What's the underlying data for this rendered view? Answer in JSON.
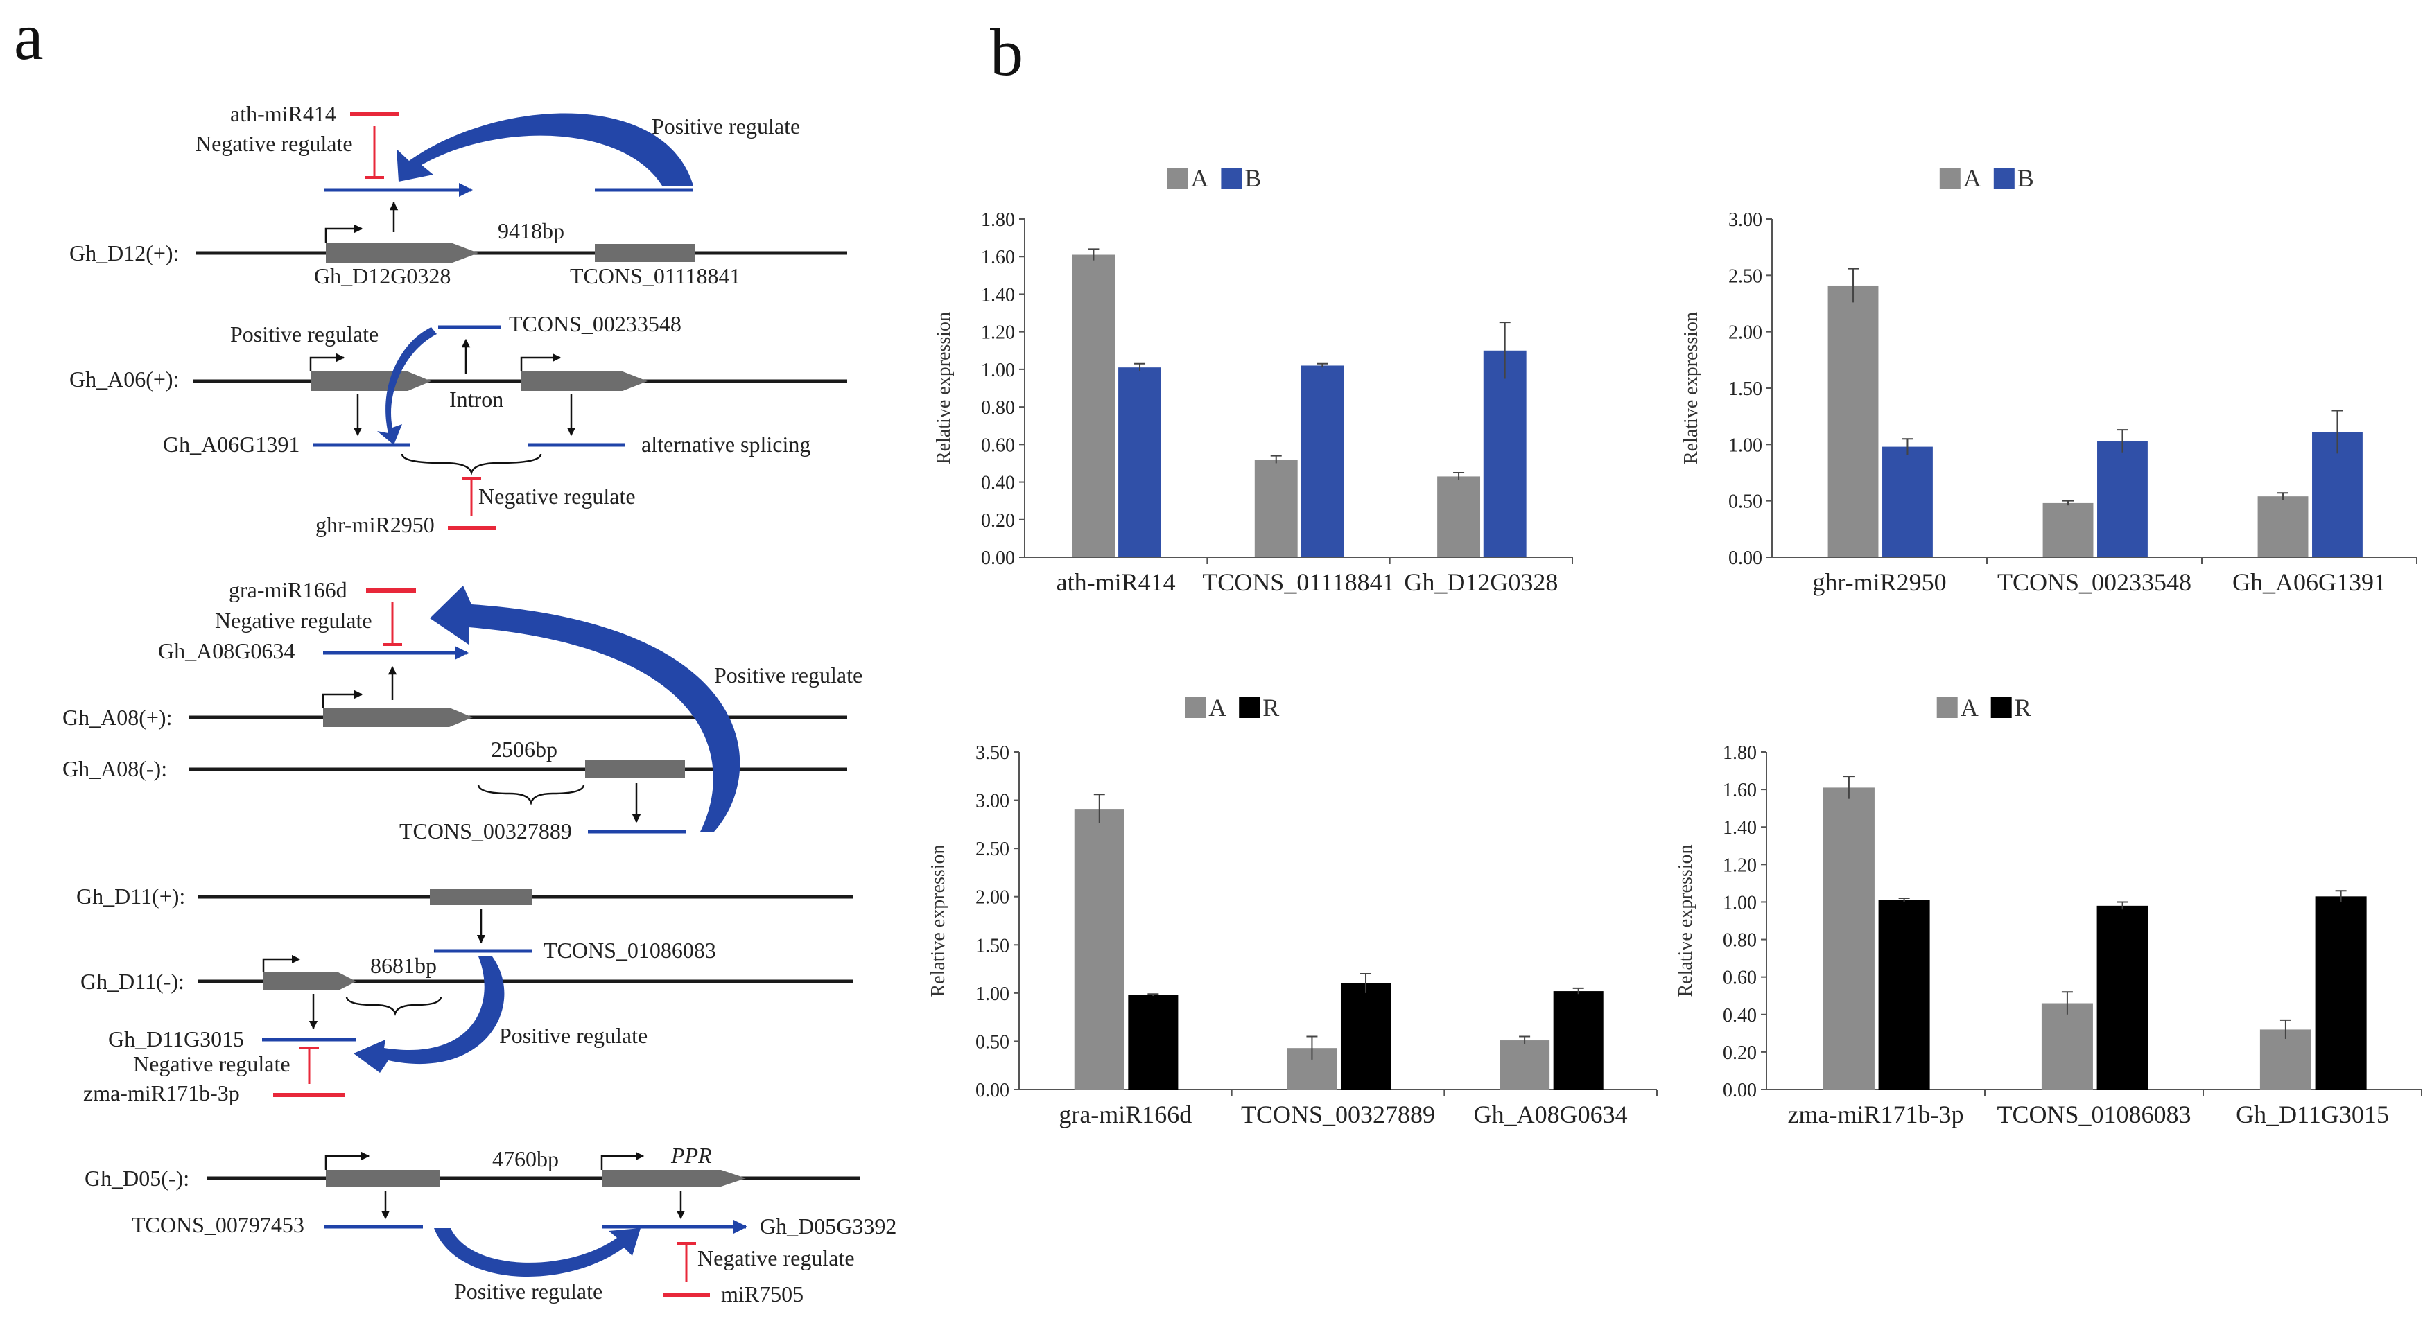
{
  "panel_a": {
    "letter": "a",
    "rows": [
      {
        "chrom": "Gh_D12(+):",
        "gene_label": "Gh_D12G0328",
        "lnc_label": "TCONS_01118841",
        "distance": "9418bp",
        "mirna": "ath-miR414",
        "neg_label": "Negative regulate",
        "pos_label": "Positive regulate"
      },
      {
        "chrom": "Gh_A06(+):",
        "gene_label": "Gh_A06G1391",
        "lnc_label": "TCONS_00233548",
        "intron_label": "Intron",
        "alt_label": "alternative splicing",
        "mirna": "ghr-miR2950",
        "neg_label": "Negative regulate",
        "pos_label": "Positive regulate"
      },
      {
        "chrom_plus": "Gh_A08(+):",
        "chrom_minus": "Gh_A08(-):",
        "gene_label": "Gh_A08G0634",
        "lnc_label": "TCONS_00327889",
        "distance": "2506bp",
        "mirna": "gra-miR166d",
        "neg_label": "Negative regulate",
        "pos_label": "Positive regulate"
      },
      {
        "chrom_plus": "Gh_D11(+):",
        "chrom_minus": "Gh_D11(-):",
        "gene_label": "Gh_D11G3015",
        "lnc_label": "TCONS_01086083",
        "distance": "8681bp",
        "mirna": "zma-miR171b-3p",
        "neg_label": "Negative regulate",
        "pos_label": "Positive regulate"
      },
      {
        "chrom": "Gh_D05(-):",
        "gene_label": "Gh_D05G3392",
        "lnc_label": "TCONS_00797453",
        "distance": "4760bp",
        "ppr_label": "PPR",
        "mirna": "miR7505",
        "neg_label": "Negative regulate",
        "pos_label": "Positive regulate"
      }
    ]
  },
  "panel_b": {
    "letter": "b"
  },
  "colors": {
    "gray_bar": "#8c8c8c",
    "blue_bar": "#3050a8",
    "black_bar": "#000000",
    "blue_line": "#1f43a8",
    "red_line": "#e8283a",
    "gene_box": "#6d6d6d"
  },
  "chart_data": [
    {
      "type": "bar",
      "ylabel": "Relative expression",
      "ylim": [
        0,
        1.8
      ],
      "yticks": [
        "0.00",
        "0.20",
        "0.40",
        "0.60",
        "0.80",
        "1.00",
        "1.20",
        "1.40",
        "1.60",
        "1.80"
      ],
      "categories": [
        "ath-miR414",
        "TCONS_01118841",
        "Gh_D12G0328"
      ],
      "series": [
        {
          "name": "A",
          "values": [
            1.61,
            0.52,
            0.43
          ],
          "errors": [
            0.03,
            0.02,
            0.02
          ],
          "color": "#8c8c8c"
        },
        {
          "name": "B",
          "values": [
            1.01,
            1.02,
            1.1
          ],
          "errors": [
            0.02,
            0.01,
            0.15
          ],
          "color": "#3050a8"
        }
      ],
      "legend": "top"
    },
    {
      "type": "bar",
      "ylabel": "Relative expression",
      "ylim": [
        0,
        3.0
      ],
      "yticks": [
        "0.00",
        "0.50",
        "1.00",
        "1.50",
        "2.00",
        "2.50",
        "3.00"
      ],
      "categories": [
        "ghr-miR2950",
        "TCONS_00233548",
        "Gh_A06G1391"
      ],
      "series": [
        {
          "name": "A",
          "values": [
            2.41,
            0.48,
            0.54
          ],
          "errors": [
            0.15,
            0.02,
            0.03
          ],
          "color": "#8c8c8c"
        },
        {
          "name": "B",
          "values": [
            0.98,
            1.03,
            1.11
          ],
          "errors": [
            0.07,
            0.1,
            0.19
          ],
          "color": "#3050a8"
        }
      ],
      "legend": "top"
    },
    {
      "type": "bar",
      "ylabel": "Relative expression",
      "ylim": [
        0,
        3.5
      ],
      "yticks": [
        "0.00",
        "0.50",
        "1.00",
        "1.50",
        "2.00",
        "2.50",
        "3.00",
        "3.50"
      ],
      "categories": [
        "gra-miR166d",
        "TCONS_00327889",
        "Gh_A08G0634"
      ],
      "series": [
        {
          "name": "A",
          "values": [
            2.91,
            0.43,
            0.51
          ],
          "errors": [
            0.15,
            0.12,
            0.04
          ],
          "color": "#8c8c8c"
        },
        {
          "name": "R",
          "values": [
            0.98,
            1.1,
            1.02
          ],
          "errors": [
            0.01,
            0.1,
            0.03
          ],
          "color": "#000000"
        }
      ],
      "legend": "top"
    },
    {
      "type": "bar",
      "ylabel": "Relative expression",
      "ylim": [
        0,
        1.8
      ],
      "yticks": [
        "0.00",
        "0.20",
        "0.40",
        "0.60",
        "0.80",
        "1.00",
        "1.20",
        "1.40",
        "1.60",
        "1.80"
      ],
      "categories": [
        "zma-miR171b-3p",
        "TCONS_01086083",
        "Gh_D11G3015"
      ],
      "series": [
        {
          "name": "A",
          "values": [
            1.61,
            0.46,
            0.32
          ],
          "errors": [
            0.06,
            0.06,
            0.05
          ],
          "color": "#8c8c8c"
        },
        {
          "name": "R",
          "values": [
            1.01,
            0.98,
            1.03
          ],
          "errors": [
            0.01,
            0.02,
            0.03
          ],
          "color": "#000000"
        }
      ],
      "legend": "top"
    }
  ]
}
